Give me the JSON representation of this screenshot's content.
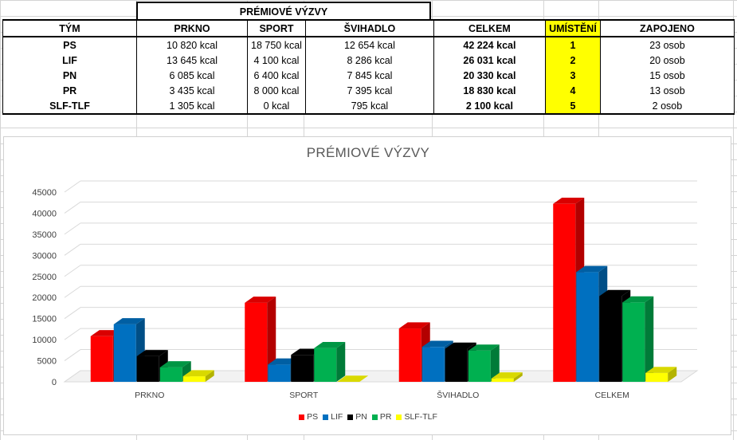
{
  "table": {
    "group_title": "PRÉMIOVÉ VÝZVY",
    "headers": [
      "TÝM",
      "PRKNO",
      "SPORT",
      "ŠVIHADLO",
      "CELKEM",
      "UMÍSTĚNÍ",
      "ZAPOJENO"
    ],
    "rows": [
      {
        "team": "PS",
        "prkno": "10 820 kcal",
        "sport": "18 750 kcal",
        "svihadlo": "12 654 kcal",
        "celkem": "42 224 kcal",
        "rank": "1",
        "zapojeno": "23 osob"
      },
      {
        "team": "LIF",
        "prkno": "13 645 kcal",
        "sport": "4 100 kcal",
        "svihadlo": "8 286 kcal",
        "celkem": "26 031 kcal",
        "rank": "2",
        "zapojeno": "20 osob"
      },
      {
        "team": "PN",
        "prkno": "6 085 kcal",
        "sport": "6 400 kcal",
        "svihadlo": "7 845 kcal",
        "celkem": "20 330 kcal",
        "rank": "3",
        "zapojeno": "15 osob"
      },
      {
        "team": "PR",
        "prkno": "3 435 kcal",
        "sport": "8 000 kcal",
        "svihadlo": "7 395 kcal",
        "celkem": "18 830 kcal",
        "rank": "4",
        "zapojeno": "13 osob"
      },
      {
        "team": "SLF-TLF",
        "prkno": "1 305 kcal",
        "sport": "0 kcal",
        "svihadlo": "795 kcal",
        "celkem": "2 100 kcal",
        "rank": "5",
        "zapojeno": "2 osob"
      }
    ],
    "colors": {
      "rank_highlight": "#ffff00"
    }
  },
  "chart_data": {
    "type": "bar",
    "title": "PRÉMIOVÉ VÝZVY",
    "categories": [
      "PRKNO",
      "SPORT",
      "ŠVIHADLO",
      "CELKEM"
    ],
    "series": [
      {
        "name": "PS",
        "color": "#ff0000",
        "values": [
          10820,
          18750,
          12654,
          42224
        ]
      },
      {
        "name": "LIF",
        "color": "#0070c0",
        "values": [
          13645,
          4100,
          8286,
          26031
        ]
      },
      {
        "name": "PN",
        "color": "#000000",
        "values": [
          6085,
          6400,
          7845,
          20330
        ]
      },
      {
        "name": "PR",
        "color": "#00b050",
        "values": [
          3435,
          8000,
          7395,
          18830
        ]
      },
      {
        "name": "SLF-TLF",
        "color": "#ffff00",
        "values": [
          1305,
          0,
          795,
          2100
        ]
      }
    ],
    "yticks": [
      0,
      5000,
      10000,
      15000,
      20000,
      25000,
      30000,
      35000,
      40000,
      45000
    ],
    "ylim": [
      0,
      45000
    ],
    "grid": true,
    "three_d": true,
    "legend_position": "bottom"
  }
}
